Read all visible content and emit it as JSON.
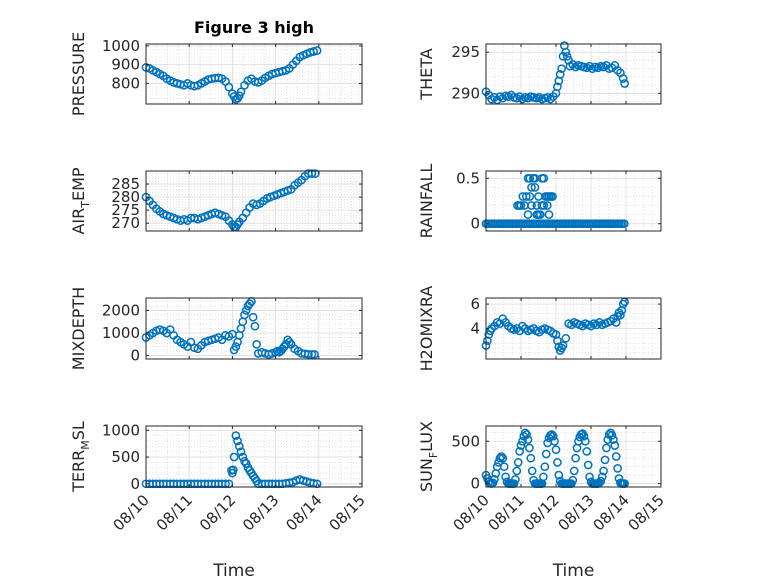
{
  "chart_data": [
    {
      "type": "scatter",
      "title": "Figure 3 high",
      "ylabel": "PRESSURE",
      "xlim": [
        0,
        5
      ],
      "ylim": [
        690,
        1010
      ],
      "yticks": [
        {
          "v": 800,
          "label": "800"
        },
        {
          "v": 900,
          "label": "900"
        },
        {
          "v": 1000,
          "label": "1000"
        }
      ],
      "x": [
        0,
        0.08,
        0.16,
        0.24,
        0.32,
        0.4,
        0.48,
        0.56,
        0.64,
        0.72,
        0.8,
        0.88,
        0.96,
        1.04,
        1.12,
        1.2,
        1.28,
        1.36,
        1.44,
        1.52,
        1.6,
        1.68,
        1.76,
        1.84,
        1.92,
        2,
        2.04,
        2.08,
        2.12,
        2.16,
        2.2,
        2.28,
        2.36,
        2.44,
        2.52,
        2.6,
        2.68,
        2.76,
        2.84,
        2.92,
        3,
        3.08,
        3.16,
        3.24,
        3.32,
        3.4,
        3.48,
        3.56,
        3.64,
        3.72,
        3.8,
        3.88,
        3.96
      ],
      "y": [
        885,
        880,
        870,
        860,
        850,
        840,
        825,
        815,
        805,
        800,
        795,
        790,
        800,
        790,
        785,
        790,
        800,
        810,
        820,
        825,
        828,
        830,
        825,
        810,
        780,
        745,
        730,
        715,
        720,
        735,
        755,
        790,
        815,
        825,
        810,
        805,
        815,
        830,
        840,
        850,
        855,
        860,
        865,
        870,
        880,
        900,
        920,
        940,
        950,
        958,
        965,
        970,
        975
      ]
    },
    {
      "type": "scatter",
      "title": "",
      "ylabel": "THETA",
      "xlim": [
        0,
        5
      ],
      "ylim": [
        288.7,
        296
      ],
      "yticks": [
        {
          "v": 290,
          "label": "290"
        },
        {
          "v": 295,
          "label": "295"
        }
      ],
      "x": [
        0,
        0.08,
        0.16,
        0.24,
        0.32,
        0.4,
        0.48,
        0.56,
        0.64,
        0.72,
        0.8,
        0.88,
        0.96,
        1.04,
        1.12,
        1.2,
        1.28,
        1.36,
        1.44,
        1.52,
        1.6,
        1.68,
        1.76,
        1.84,
        1.92,
        2,
        2.04,
        2.08,
        2.12,
        2.16,
        2.2,
        2.24,
        2.28,
        2.32,
        2.36,
        2.4,
        2.48,
        2.56,
        2.64,
        2.72,
        2.8,
        2.88,
        2.96,
        3.04,
        3.12,
        3.2,
        3.28,
        3.36,
        3.44,
        3.52,
        3.6,
        3.68,
        3.76,
        3.84,
        3.92,
        3.96
      ],
      "y": [
        290.2,
        289.8,
        289.3,
        289.5,
        289.2,
        289.6,
        289.4,
        289.7,
        289.6,
        289.8,
        289.5,
        289.4,
        289.6,
        289.3,
        289.5,
        289.4,
        289.6,
        289.5,
        289.4,
        289.5,
        289.3,
        289.4,
        289.5,
        289.3,
        289.6,
        290,
        290.8,
        291.5,
        292.3,
        293,
        294.5,
        295.8,
        295,
        294.5,
        294,
        293.3,
        293.5,
        293.2,
        293.4,
        293.3,
        293.2,
        293.1,
        293.3,
        293,
        293.2,
        293.1,
        293.3,
        293.2,
        293.4,
        293,
        293.1,
        293.4,
        292.8,
        292.5,
        291.8,
        291.2
      ]
    },
    {
      "type": "scatter",
      "title": "",
      "ylabel": "AIR",
      "ylabel_sub": "T",
      "ylabel_rest": "EMP",
      "xlim": [
        0,
        5
      ],
      "ylim": [
        267,
        290
      ],
      "yticks": [
        {
          "v": 270,
          "label": "270"
        },
        {
          "v": 275,
          "label": "275"
        },
        {
          "v": 280,
          "label": "280"
        },
        {
          "v": 285,
          "label": "285"
        }
      ],
      "x": [
        0,
        0.08,
        0.16,
        0.24,
        0.32,
        0.4,
        0.48,
        0.56,
        0.64,
        0.72,
        0.8,
        0.88,
        0.96,
        1.04,
        1.12,
        1.2,
        1.28,
        1.36,
        1.44,
        1.52,
        1.6,
        1.68,
        1.76,
        1.84,
        1.92,
        2,
        2.04,
        2.08,
        2.12,
        2.16,
        2.24,
        2.32,
        2.4,
        2.48,
        2.56,
        2.64,
        2.72,
        2.8,
        2.88,
        2.96,
        3.04,
        3.12,
        3.2,
        3.28,
        3.36,
        3.44,
        3.52,
        3.6,
        3.68,
        3.76,
        3.84,
        3.92
      ],
      "y": [
        280,
        278.5,
        277,
        275.5,
        274.5,
        273.5,
        273,
        272.5,
        272,
        271.5,
        271,
        271.5,
        271,
        272,
        272,
        271.5,
        272,
        272.5,
        273,
        273.5,
        274,
        273.5,
        273,
        272.5,
        271,
        269.5,
        268.5,
        268.5,
        269.5,
        270.5,
        272,
        274,
        276,
        277.5,
        277,
        277.5,
        278.5,
        279.5,
        280,
        280.5,
        281,
        281.5,
        282,
        282.5,
        283,
        284.5,
        285.5,
        286.5,
        288,
        289,
        289,
        289
      ]
    },
    {
      "type": "scatter",
      "title": "",
      "ylabel": "RAINFALL",
      "xlim": [
        0,
        5
      ],
      "ylim": [
        -0.08,
        0.58
      ],
      "yticks": [
        {
          "v": 0,
          "label": "0"
        },
        {
          "v": 0.5,
          "label": "0.5"
        }
      ],
      "x": [
        0,
        0.05,
        0.1,
        0.15,
        0.2,
        0.25,
        0.3,
        0.35,
        0.4,
        0.45,
        0.5,
        0.55,
        0.6,
        0.65,
        0.7,
        0.75,
        0.8,
        0.85,
        0.9,
        0.95,
        1.0,
        1.05,
        1.1,
        1.15,
        1.2,
        1.25,
        1.3,
        1.35,
        1.4,
        1.45,
        1.5,
        1.55,
        1.6,
        1.65,
        1.7,
        1.75,
        1.8,
        1.85,
        1.9,
        1.95,
        2.0,
        2.05,
        2.1,
        2.15,
        2.2,
        2.25,
        2.3,
        2.35,
        2.4,
        2.45,
        2.5,
        2.55,
        2.6,
        2.65,
        2.7,
        2.75,
        2.8,
        2.85,
        2.9,
        2.95,
        3.0,
        3.05,
        3.1,
        3.15,
        3.2,
        3.25,
        3.3,
        3.35,
        3.4,
        3.45,
        3.5,
        3.55,
        3.6,
        3.65,
        3.7,
        3.75,
        3.8,
        3.85,
        3.9,
        3.95,
        0.9,
        0.95,
        1.0,
        1.05,
        1.1,
        1.15,
        1.2,
        1.25,
        1.3,
        1.35,
        1.4,
        1.45,
        1.5,
        1.55,
        1.6,
        1.65,
        1.7,
        1.75,
        1.8,
        1.85,
        1.9,
        1.25,
        1.3,
        1.4,
        1.45,
        1.6,
        1.65,
        1.75,
        1.8,
        1.2,
        1.35,
        1.5
      ],
      "y": [
        0,
        0,
        0,
        0,
        0,
        0,
        0,
        0,
        0,
        0,
        0,
        0,
        0,
        0,
        0,
        0,
        0,
        0,
        0,
        0,
        0,
        0,
        0,
        0,
        0,
        0,
        0,
        0,
        0,
        0,
        0,
        0,
        0,
        0,
        0,
        0,
        0,
        0,
        0,
        0,
        0,
        0,
        0,
        0,
        0,
        0,
        0,
        0,
        0,
        0,
        0,
        0,
        0,
        0,
        0,
        0,
        0,
        0,
        0,
        0,
        0,
        0,
        0,
        0,
        0,
        0,
        0,
        0,
        0,
        0,
        0,
        0,
        0,
        0,
        0,
        0,
        0,
        0,
        0,
        0,
        0.2,
        0.2,
        0.2,
        0.3,
        0.2,
        0.3,
        0.5,
        0.3,
        0.2,
        0.5,
        0.5,
        0.2,
        0.3,
        0.1,
        0.2,
        0.5,
        0.3,
        0.3,
        0.3,
        0.3,
        0.3,
        0.5,
        0.4,
        0.4,
        0.1,
        0.5,
        0.2,
        0.2,
        0.1,
        0.1,
        0.5,
        0.1
      ]
    },
    {
      "type": "scatter",
      "title": "",
      "ylabel": "MIXDEPTH",
      "xlim": [
        0,
        5
      ],
      "ylim": [
        -150,
        2550
      ],
      "yticks": [
        {
          "v": 0,
          "label": "0"
        },
        {
          "v": 1000,
          "label": "1000"
        },
        {
          "v": 2000,
          "label": "2000"
        }
      ],
      "x": [
        0,
        0.08,
        0.16,
        0.24,
        0.32,
        0.4,
        0.48,
        0.56,
        0.64,
        0.72,
        0.8,
        0.88,
        0.96,
        1.04,
        1.12,
        1.2,
        1.28,
        1.36,
        1.44,
        1.52,
        1.6,
        1.68,
        1.76,
        1.84,
        1.92,
        2.0,
        2.04,
        2.08,
        2.12,
        2.16,
        2.2,
        2.24,
        2.28,
        2.32,
        2.36,
        2.4,
        2.44,
        2.48,
        2.52,
        2.56,
        2.6,
        2.68,
        2.76,
        2.84,
        2.92,
        3.0,
        3.04,
        3.08,
        3.12,
        3.16,
        3.2,
        3.24,
        3.28,
        3.32,
        3.36,
        3.44,
        3.52,
        3.6,
        3.68,
        3.76,
        3.84,
        3.9
      ],
      "y": [
        800,
        900,
        1000,
        1100,
        1150,
        1100,
        1000,
        1150,
        900,
        700,
        600,
        500,
        400,
        600,
        350,
        300,
        450,
        600,
        650,
        700,
        750,
        800,
        700,
        900,
        850,
        950,
        250,
        400,
        600,
        900,
        1200,
        1500,
        1800,
        2000,
        2200,
        2300,
        2400,
        1700,
        1300,
        500,
        100,
        150,
        100,
        50,
        100,
        150,
        200,
        150,
        200,
        300,
        400,
        500,
        700,
        600,
        500,
        300,
        200,
        100,
        80,
        60,
        50,
        50
      ]
    },
    {
      "type": "scatter",
      "title": "",
      "ylabel": "H2OMIXRA",
      "xlim": [
        0,
        5
      ],
      "ylim": [
        1.5,
        6.5
      ],
      "yticks": [
        {
          "v": 4,
          "label": "4"
        },
        {
          "v": 6,
          "label": "6"
        }
      ],
      "x": [
        0,
        0.04,
        0.08,
        0.12,
        0.16,
        0.24,
        0.32,
        0.4,
        0.48,
        0.56,
        0.64,
        0.72,
        0.8,
        0.88,
        0.96,
        1.04,
        1.12,
        1.2,
        1.28,
        1.36,
        1.44,
        1.52,
        1.6,
        1.68,
        1.76,
        1.84,
        1.92,
        2.0,
        2.04,
        2.08,
        2.12,
        2.16,
        2.2,
        2.28,
        2.36,
        2.44,
        2.52,
        2.6,
        2.68,
        2.76,
        2.84,
        2.92,
        3.0,
        3.08,
        3.16,
        3.24,
        3.32,
        3.4,
        3.48,
        3.56,
        3.64,
        3.72,
        3.76,
        3.8,
        3.84,
        3.88,
        3.92,
        3.96
      ],
      "y": [
        2.6,
        3.0,
        3.5,
        3.8,
        4.0,
        4.2,
        4.5,
        4.4,
        4.8,
        4.5,
        4.2,
        4.0,
        3.9,
        4.0,
        3.8,
        4.2,
        4.0,
        3.8,
        3.9,
        4.0,
        3.8,
        3.7,
        3.9,
        4.0,
        3.9,
        3.8,
        3.6,
        3.5,
        3.0,
        2.5,
        2.2,
        2.4,
        2.6,
        3.2,
        4.4,
        4.3,
        4.5,
        4.4,
        4.3,
        4.2,
        4.4,
        4.3,
        4.2,
        4.4,
        4.3,
        4.5,
        4.3,
        4.4,
        4.5,
        4.6,
        4.8,
        4.5,
        5.0,
        5.3,
        5.1,
        5.5,
        6.0,
        6.2
      ]
    },
    {
      "type": "scatter",
      "title": "",
      "ylabel": "TERR",
      "ylabel_sub": "M",
      "ylabel_rest": "SL",
      "xlim": [
        0,
        5
      ],
      "ylim": [
        -60,
        1080
      ],
      "yticks": [
        {
          "v": 0,
          "label": "0"
        },
        {
          "v": 500,
          "label": "500"
        },
        {
          "v": 1000,
          "label": "1000"
        }
      ],
      "xticks": [
        "08/10",
        "08/11",
        "08/12",
        "08/13",
        "08/14",
        "08/15"
      ],
      "xlabel": "Time",
      "x": [
        0,
        0.08,
        0.16,
        0.24,
        0.32,
        0.4,
        0.48,
        0.56,
        0.64,
        0.72,
        0.8,
        0.88,
        0.96,
        1.04,
        1.12,
        1.2,
        1.28,
        1.36,
        1.44,
        1.52,
        1.6,
        1.68,
        1.76,
        1.84,
        1.92,
        1.98,
        2.0,
        2.02,
        2.04,
        2.08,
        2.12,
        2.16,
        2.2,
        2.24,
        2.28,
        2.32,
        2.36,
        2.4,
        2.44,
        2.48,
        2.52,
        2.56,
        2.6,
        2.68,
        2.76,
        2.84,
        2.92,
        3.0,
        3.08,
        3.16,
        3.24,
        3.32,
        3.4,
        3.48,
        3.56,
        3.64,
        3.72,
        3.8,
        3.88,
        3.96
      ],
      "y": [
        0,
        0,
        0,
        0,
        0,
        0,
        0,
        0,
        0,
        0,
        0,
        0,
        0,
        0,
        0,
        0,
        0,
        0,
        0,
        0,
        0,
        0,
        0,
        0,
        0,
        250,
        200,
        260,
        500,
        900,
        800,
        700,
        600,
        500,
        420,
        380,
        300,
        250,
        200,
        150,
        100,
        50,
        0,
        0,
        0,
        0,
        0,
        0,
        0,
        0,
        10,
        20,
        30,
        60,
        80,
        60,
        40,
        20,
        10,
        0
      ]
    },
    {
      "type": "scatter",
      "title": "",
      "ylabel": "SUN",
      "ylabel_sub": "F",
      "ylabel_rest": "LUX",
      "xlim": [
        0,
        5
      ],
      "ylim": [
        -40,
        680
      ],
      "yticks": [
        {
          "v": 0,
          "label": "0"
        },
        {
          "v": 500,
          "label": "500"
        }
      ],
      "xticks": [
        "08/10",
        "08/11",
        "08/12",
        "08/13",
        "08/14",
        "08/15"
      ],
      "xlabel": "Time",
      "x": [
        0,
        0.04,
        0.08,
        0.12,
        0.16,
        0.2,
        0.24,
        0.28,
        0.32,
        0.36,
        0.4,
        0.44,
        0.48,
        0.52,
        0.56,
        0.6,
        0.64,
        0.68,
        0.72,
        0.76,
        0.8,
        0.84,
        0.88,
        0.92,
        0.96,
        1.0,
        1.04,
        1.08,
        1.12,
        1.16,
        1.2,
        1.24,
        1.28,
        1.32,
        1.36,
        1.4,
        1.44,
        1.48,
        1.52,
        1.56,
        1.6,
        1.64,
        1.68,
        1.72,
        1.76,
        1.8,
        1.84,
        1.88,
        1.92,
        1.96,
        2.0,
        2.04,
        2.08,
        2.12,
        2.16,
        2.2,
        2.24,
        2.28,
        2.32,
        2.36,
        2.4,
        2.44,
        2.48,
        2.52,
        2.56,
        2.6,
        2.64,
        2.68,
        2.72,
        2.76,
        2.8,
        2.84,
        2.88,
        2.92,
        2.96,
        3.0,
        3.04,
        3.08,
        3.12,
        3.16,
        3.2,
        3.24,
        3.28,
        3.32,
        3.36,
        3.4,
        3.44,
        3.48,
        3.52,
        3.56,
        3.6,
        3.64,
        3.68,
        3.72,
        3.76,
        3.8,
        3.84,
        3.88,
        3.92,
        3.96
      ],
      "y": [
        100,
        60,
        20,
        5,
        0,
        10,
        50,
        120,
        200,
        250,
        300,
        320,
        300,
        200,
        80,
        20,
        0,
        0,
        0,
        0,
        0,
        50,
        150,
        250,
        380,
        450,
        500,
        560,
        600,
        580,
        520,
        420,
        300,
        150,
        40,
        0,
        0,
        0,
        0,
        0,
        0,
        80,
        200,
        350,
        480,
        540,
        570,
        580,
        560,
        500,
        400,
        250,
        100,
        30,
        0,
        0,
        0,
        0,
        0,
        0,
        0,
        0,
        40,
        150,
        300,
        420,
        500,
        550,
        580,
        590,
        560,
        500,
        380,
        220,
        80,
        20,
        0,
        0,
        0,
        0,
        0,
        10,
        30,
        80,
        150,
        280,
        420,
        520,
        580,
        600,
        570,
        520,
        450,
        320,
        180,
        60,
        10,
        0,
        0,
        0
      ]
    }
  ]
}
